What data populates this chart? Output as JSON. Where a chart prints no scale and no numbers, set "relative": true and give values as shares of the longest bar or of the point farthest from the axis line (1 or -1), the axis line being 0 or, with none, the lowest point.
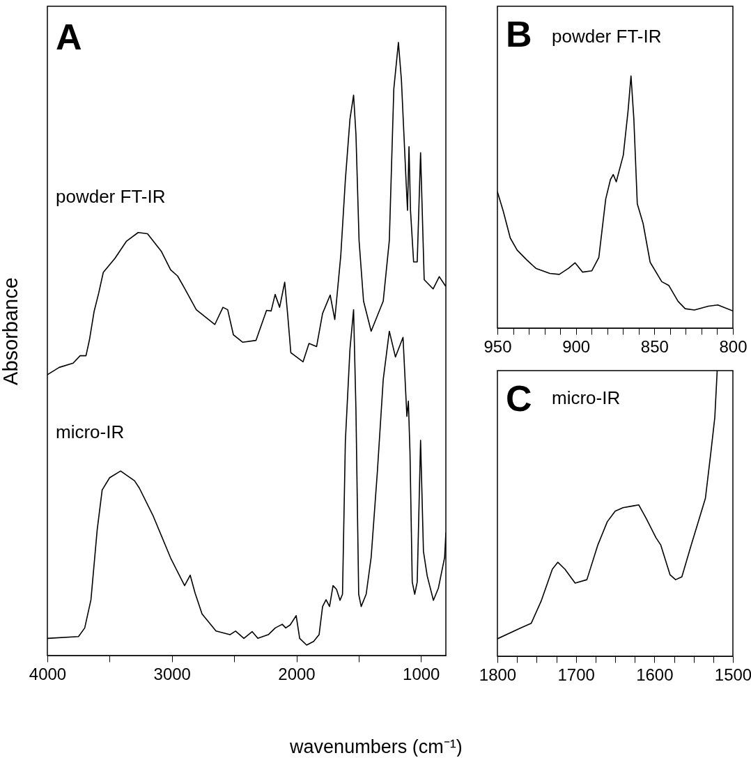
{
  "chart_data": [
    {
      "type": "line",
      "relative": true,
      "xlabel": "wavenumbers (cm⁻¹)",
      "ylabel": "Absorbance",
      "xlim": [
        4000,
        800
      ],
      "xticks": [
        4000,
        {
          "value": 3500,
          "label": null
        },
        3000,
        {
          "value": 2500,
          "label": null
        },
        2000,
        {
          "value": 1500,
          "label": null
        },
        1000
      ],
      "tick_labels": "x",
      "annotations": [
        "A"
      ],
      "series": [
        {
          "name": "powder FT-IR",
          "color": "#000000",
          "x": [
            4000,
            3905,
            3793,
            3737,
            3690,
            3662,
            3625,
            3588,
            3551,
            3457,
            3364,
            3271,
            3196,
            3084,
            3010,
            2954,
            2898,
            2804,
            2655,
            2590,
            2552,
            2506,
            2431,
            2325,
            2240,
            2203,
            2171,
            2135,
            2094,
            2069,
            2045,
            1947,
            1899,
            1838,
            1790,
            1729,
            1692,
            1644,
            1607,
            1570,
            1541,
            1522,
            1497,
            1461,
            1400,
            1303,
            1254,
            1218,
            1181,
            1157,
            1120,
            1108,
            1096,
            1084,
            1059,
            1030,
            1003,
            974,
            902,
            853,
            804
          ],
          "values": [
            0.458,
            0.47,
            0.477,
            0.489,
            0.489,
            0.515,
            0.561,
            0.591,
            0.625,
            0.648,
            0.676,
            0.69,
            0.688,
            0.659,
            0.629,
            0.619,
            0.599,
            0.564,
            0.54,
            0.568,
            0.564,
            0.523,
            0.511,
            0.514,
            0.563,
            0.562,
            0.589,
            0.568,
            0.609,
            0.553,
            0.494,
            0.479,
            0.509,
            0.504,
            0.558,
            0.588,
            0.548,
            0.652,
            0.776,
            0.875,
            0.914,
            0.85,
            0.677,
            0.578,
            0.529,
            0.578,
            0.677,
            0.924,
            1.0,
            0.939,
            0.776,
            0.726,
            0.83,
            0.726,
            0.642,
            0.642,
            0.82,
            0.613,
            0.598,
            0.618,
            0.603
          ]
        },
        {
          "name": "micro-IR",
          "color": "#000000",
          "x": [
            4000,
            3750,
            3700,
            3650,
            3600,
            3560,
            3500,
            3412,
            3300,
            3261,
            3149,
            3010,
            2898,
            2853,
            2814,
            2758,
            2646,
            2534,
            2489,
            2422,
            2355,
            2310,
            2226,
            2170,
            2114,
            2086,
            2050,
            2002,
            1974,
            1918,
            1862,
            1818,
            1790,
            1762,
            1734,
            1706,
            1678,
            1650,
            1630,
            1607,
            1570,
            1541,
            1522,
            1500,
            1480,
            1440,
            1400,
            1350,
            1303,
            1254,
            1205,
            1144,
            1113,
            1101,
            1088,
            1070,
            1050,
            1030,
            1003,
            980,
            950,
            900,
            860,
            810,
            800
          ],
          "values": [
            0.028,
            0.031,
            0.045,
            0.091,
            0.205,
            0.27,
            0.29,
            0.301,
            0.285,
            0.273,
            0.227,
            0.159,
            0.114,
            0.131,
            0.102,
            0.068,
            0.04,
            0.034,
            0.04,
            0.028,
            0.039,
            0.028,
            0.034,
            0.045,
            0.051,
            0.045,
            0.05,
            0.065,
            0.028,
            0.017,
            0.023,
            0.034,
            0.08,
            0.091,
            0.08,
            0.114,
            0.108,
            0.09,
            0.1,
            0.35,
            0.5,
            0.564,
            0.4,
            0.1,
            0.08,
            0.1,
            0.16,
            0.3,
            0.45,
            0.529,
            0.487,
            0.519,
            0.39,
            0.415,
            0.331,
            0.12,
            0.1,
            0.12,
            0.351,
            0.17,
            0.13,
            0.09,
            0.11,
            0.16,
            0.2
          ]
        }
      ]
    },
    {
      "type": "line",
      "relative": true,
      "xlim": [
        950,
        800
      ],
      "xticks": [
        950,
        {
          "value": 940,
          "label": null
        },
        {
          "value": 930,
          "label": null
        },
        {
          "value": 920,
          "label": null
        },
        {
          "value": 910,
          "label": null
        },
        900,
        {
          "value": 890,
          "label": null
        },
        {
          "value": 880,
          "label": null
        },
        {
          "value": 870,
          "label": null
        },
        {
          "value": 860,
          "label": null
        },
        850,
        {
          "value": 840,
          "label": null
        },
        {
          "value": 830,
          "label": null
        },
        {
          "value": 820,
          "label": null
        },
        {
          "value": 810,
          "label": null
        },
        800
      ],
      "tick_labels": "x",
      "annotations": [
        "B"
      ],
      "series": [
        {
          "name": "powder FT-IR",
          "color": "#000000",
          "x": [
            950,
            946.3,
            941.8,
            937.4,
            931.4,
            925.5,
            916.6,
            910.6,
            904.7,
            900.5,
            895.8,
            889.9,
            885.4,
            881,
            878,
            876.2,
            874.3,
            869.8,
            866.8,
            864.9,
            863.1,
            860.9,
            857.2,
            852.7,
            845.3,
            840.8,
            834.9,
            830.4,
            824.5,
            815.6,
            809.6,
            800
          ],
          "values": [
            0.541,
            0.464,
            0.357,
            0.309,
            0.271,
            0.237,
            0.217,
            0.213,
            0.237,
            0.259,
            0.222,
            0.227,
            0.28,
            0.512,
            0.589,
            0.609,
            0.58,
            0.686,
            0.86,
            1.0,
            0.831,
            0.493,
            0.415,
            0.261,
            0.184,
            0.169,
            0.106,
            0.077,
            0.072,
            0.087,
            0.092,
            0.068
          ]
        }
      ]
    },
    {
      "type": "line",
      "relative": true,
      "xlim": [
        1800,
        1500
      ],
      "xticks": [
        1800,
        {
          "value": 1775,
          "label": null
        },
        {
          "value": 1750,
          "label": null
        },
        {
          "value": 1725,
          "label": null
        },
        1700,
        {
          "value": 1675,
          "label": null
        },
        {
          "value": 1650,
          "label": null
        },
        {
          "value": 1625,
          "label": null
        },
        1600,
        {
          "value": 1575,
          "label": null
        },
        {
          "value": 1550,
          "label": null
        },
        {
          "value": 1525,
          "label": null
        },
        1500
      ],
      "tick_labels": "x",
      "annotations": [
        "C"
      ],
      "series": [
        {
          "name": "micro-IR",
          "color": "#000000",
          "x": [
            1800,
            1771,
            1757,
            1744,
            1730,
            1723,
            1714,
            1701,
            1686,
            1672,
            1660,
            1650,
            1640,
            1628,
            1620,
            1610,
            1598,
            1592,
            1580,
            1573,
            1565,
            1553,
            1535,
            1528,
            1523,
            1520
          ],
          "values": [
            0.061,
            0.098,
            0.115,
            0.195,
            0.305,
            0.329,
            0.305,
            0.256,
            0.268,
            0.39,
            0.471,
            0.508,
            0.52,
            0.526,
            0.53,
            0.48,
            0.415,
            0.39,
            0.285,
            0.268,
            0.278,
            0.39,
            0.553,
            0.715,
            0.837,
            1.0
          ]
        }
      ]
    }
  ]
}
